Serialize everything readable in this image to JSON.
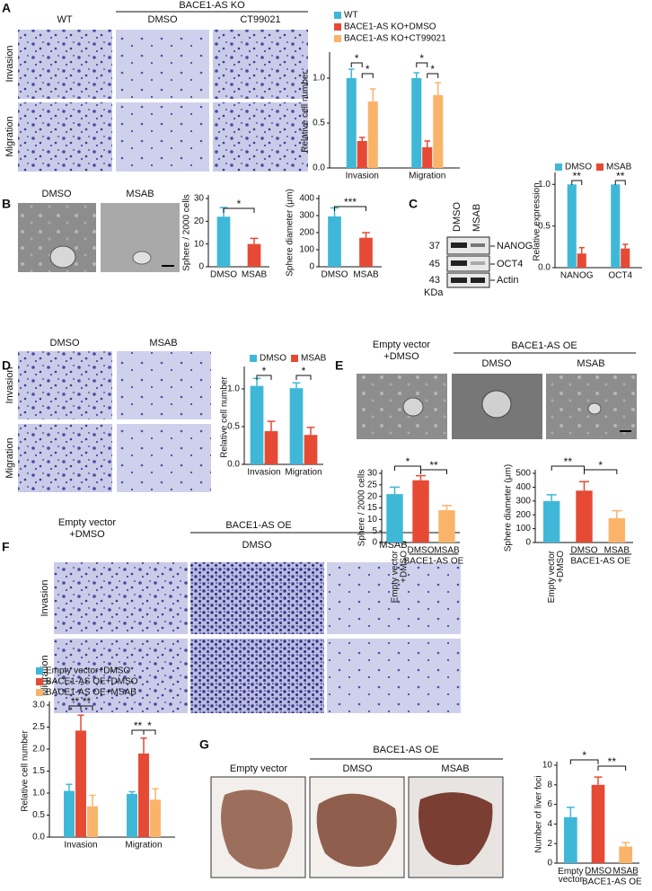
{
  "panels": {
    "A": {
      "label": "A",
      "col_wt": "WT",
      "group": "BACE1-AS KO",
      "col_dmso": "DMSO",
      "col_ct": "CT99021",
      "row_invasion": "Invasion",
      "row_migration": "Migration"
    },
    "B": {
      "label": "B",
      "col_dmso": "DMSO",
      "col_msab": "MSAB"
    },
    "C": {
      "label": "C",
      "lane_dmso": "DMSO",
      "lane_msab": "MSAB",
      "markers": [
        37,
        45,
        43
      ],
      "unit": "KDa",
      "bands": [
        "NANOG",
        "OCT4",
        "Actin"
      ]
    },
    "D": {
      "label": "D",
      "col_dmso": "DMSO",
      "col_msab": "MSAB",
      "row_invasion": "Invasion",
      "row_migration": "Migration"
    },
    "E": {
      "label": "E",
      "col_empty": "Empty vector",
      "col_empty2": "+DMSO",
      "group": "BACE1-AS OE",
      "col_dmso": "DMSO",
      "col_msab": "MSAB"
    },
    "F": {
      "label": "F",
      "col_empty": "Empty vector",
      "col_empty2": "+DMSO",
      "group": "BACE1-AS OE",
      "col_dmso": "DMSO",
      "col_msab": "MSAB",
      "row_invasion": "Invasion",
      "row_migration": "Migration"
    },
    "G": {
      "label": "G",
      "group": "BACE1-AS OE",
      "col_empty": "Empty vector",
      "col_dmso": "DMSO",
      "col_msab": "MSAB"
    }
  },
  "chart_data": [
    {
      "type": "bar",
      "ylabel": "Relative cell number",
      "categories": [
        "Invasion",
        "Migration"
      ],
      "series": [
        {
          "name": "WT",
          "color": "#3fb8d8",
          "values": [
            1.0,
            1.0
          ],
          "errors": [
            0.1,
            0.06
          ]
        },
        {
          "name": "BACE1-AS KO+DMSO",
          "color": "#e64a35",
          "values": [
            0.3,
            0.23
          ],
          "errors": [
            0.04,
            0.07
          ]
        },
        {
          "name": "BACE1-AS KO+CT99021",
          "color": "#f9b469",
          "values": [
            0.74,
            0.81
          ],
          "errors": [
            0.14,
            0.14
          ]
        }
      ],
      "ylim": [
        0,
        1.25
      ],
      "yticks": [
        {
          "value": 0,
          "label": "0.0"
        },
        {
          "value": 0.5,
          "label": "0.5"
        },
        {
          "value": 1,
          "label": "1.0"
        }
      ],
      "legend": "top-right",
      "annotations": [
        "*",
        "*",
        "*",
        "*"
      ]
    },
    {
      "type": "bar",
      "ylabel": "Sphere / 2000 cells",
      "categories": [
        "DMSO",
        "MSAB"
      ],
      "values": [
        22,
        10
      ],
      "errors": [
        4,
        2.5
      ],
      "colors": [
        "#3fb8d8",
        "#e64a35"
      ],
      "ylim": [
        0,
        30
      ],
      "yticks": [
        0,
        10,
        20,
        30
      ],
      "annotations": [
        "*"
      ]
    },
    {
      "type": "bar",
      "ylabel": "Sphere diameter (μm)",
      "categories": [
        "DMSO",
        "MSAB"
      ],
      "values": [
        295,
        170
      ],
      "errors": [
        50,
        30
      ],
      "colors": [
        "#3fb8d8",
        "#e64a35"
      ],
      "ylim": [
        0,
        400
      ],
      "yticks": [
        0,
        100,
        200,
        300,
        400
      ],
      "annotations": [
        "***"
      ]
    },
    {
      "type": "bar",
      "ylabel": "Relative expression",
      "categories": [
        "NANOG",
        "OCT4"
      ],
      "series": [
        {
          "name": "DMSO",
          "color": "#3fb8d8",
          "values": [
            1.0,
            1.0
          ]
        },
        {
          "name": "MSAB",
          "color": "#e64a35",
          "values": [
            0.17,
            0.23
          ],
          "errors": [
            0.07,
            0.05
          ]
        }
      ],
      "ylim": [
        0,
        1.1
      ],
      "yticks": [
        {
          "value": 0,
          "label": "0.0"
        },
        {
          "value": 0.5,
          "label": "0.5"
        },
        {
          "value": 1,
          "label": "1.0"
        }
      ],
      "legend": "top",
      "annotations": [
        "**",
        "**"
      ]
    },
    {
      "type": "bar",
      "ylabel": "Relative cell number",
      "categories": [
        "Invasion",
        "Migration"
      ],
      "series": [
        {
          "name": "DMSO",
          "color": "#3fb8d8",
          "values": [
            1.04,
            1.01
          ],
          "errors": [
            0.1,
            0.07
          ]
        },
        {
          "name": "MSAB",
          "color": "#e64a35",
          "values": [
            0.44,
            0.39
          ],
          "errors": [
            0.13,
            0.1
          ]
        }
      ],
      "ylim": [
        0,
        1.25
      ],
      "yticks": [
        {
          "value": 0,
          "label": "0.0"
        },
        {
          "value": 0.5,
          "label": "0.5"
        },
        {
          "value": 1,
          "label": "1.0"
        }
      ],
      "legend": "top",
      "annotations": [
        "*",
        "*"
      ]
    },
    {
      "type": "bar",
      "ylabel": "Sphere / 2000 cells",
      "categories": [
        "Empty vector +DMSO",
        "DMSO",
        "MSAB"
      ],
      "values": [
        21,
        27,
        14
      ],
      "errors": [
        3,
        2,
        2
      ],
      "colors": [
        "#3fb8d8",
        "#e64a35",
        "#f9b469"
      ],
      "ylim": [
        0,
        30
      ],
      "yticks": [
        0,
        5,
        10,
        15,
        20,
        25,
        30
      ],
      "group_label": "BACE1-AS OE",
      "annotations": [
        "*",
        "**"
      ]
    },
    {
      "type": "bar",
      "ylabel": "Sphere diameter (μm)",
      "categories": [
        "Empty vector +DMSO",
        "DMSO",
        "MSAB"
      ],
      "values": [
        300,
        375,
        175
      ],
      "errors": [
        45,
        65,
        55
      ],
      "colors": [
        "#3fb8d8",
        "#e64a35",
        "#f9b469"
      ],
      "ylim": [
        0,
        500
      ],
      "yticks": [
        0,
        100,
        200,
        300,
        400,
        500
      ],
      "group_label": "BACE1-AS OE",
      "annotations": [
        "**",
        "*"
      ]
    },
    {
      "type": "bar",
      "ylabel": "Relative cell number",
      "categories": [
        "Invasion",
        "Migration"
      ],
      "series": [
        {
          "name": "Empty vector+DMSO",
          "color": "#3fb8d8",
          "values": [
            1.05,
            0.98
          ],
          "errors": [
            0.15,
            0.05
          ]
        },
        {
          "name": "BACE1-AS OE+DMSO",
          "color": "#e64a35",
          "values": [
            2.42,
            1.9
          ],
          "errors": [
            0.35,
            0.35
          ]
        },
        {
          "name": "BACE1-AS OE+MSAB",
          "color": "#f9b469",
          "values": [
            0.7,
            0.85
          ],
          "errors": [
            0.25,
            0.25
          ]
        }
      ],
      "ylim": [
        0,
        3
      ],
      "yticks": [
        {
          "value": 0,
          "label": "0.0"
        },
        {
          "value": 0.5,
          "label": "0.5"
        },
        {
          "value": 1,
          "label": "1.0"
        },
        {
          "value": 1.5,
          "label": "1.5"
        },
        {
          "value": 2,
          "label": "2.0"
        },
        {
          "value": 2.5,
          "label": "2.5"
        },
        {
          "value": 3,
          "label": "3.0"
        }
      ],
      "legend": "top-left",
      "annotations": [
        "**",
        "**",
        "**",
        "*"
      ]
    },
    {
      "type": "bar",
      "ylabel": "Number of liver foci",
      "categories": [
        "Empty vector",
        "DMSO",
        "MSAB"
      ],
      "values": [
        4.7,
        8.0,
        1.7
      ],
      "errors": [
        1.0,
        0.8,
        0.4
      ],
      "colors": [
        "#3fb8d8",
        "#e64a35",
        "#f9b469"
      ],
      "ylim": [
        0,
        10
      ],
      "yticks": [
        0,
        2,
        4,
        6,
        8,
        10
      ],
      "group_label": "BACE1-AS OE",
      "annotations": [
        "*",
        "**"
      ]
    }
  ]
}
